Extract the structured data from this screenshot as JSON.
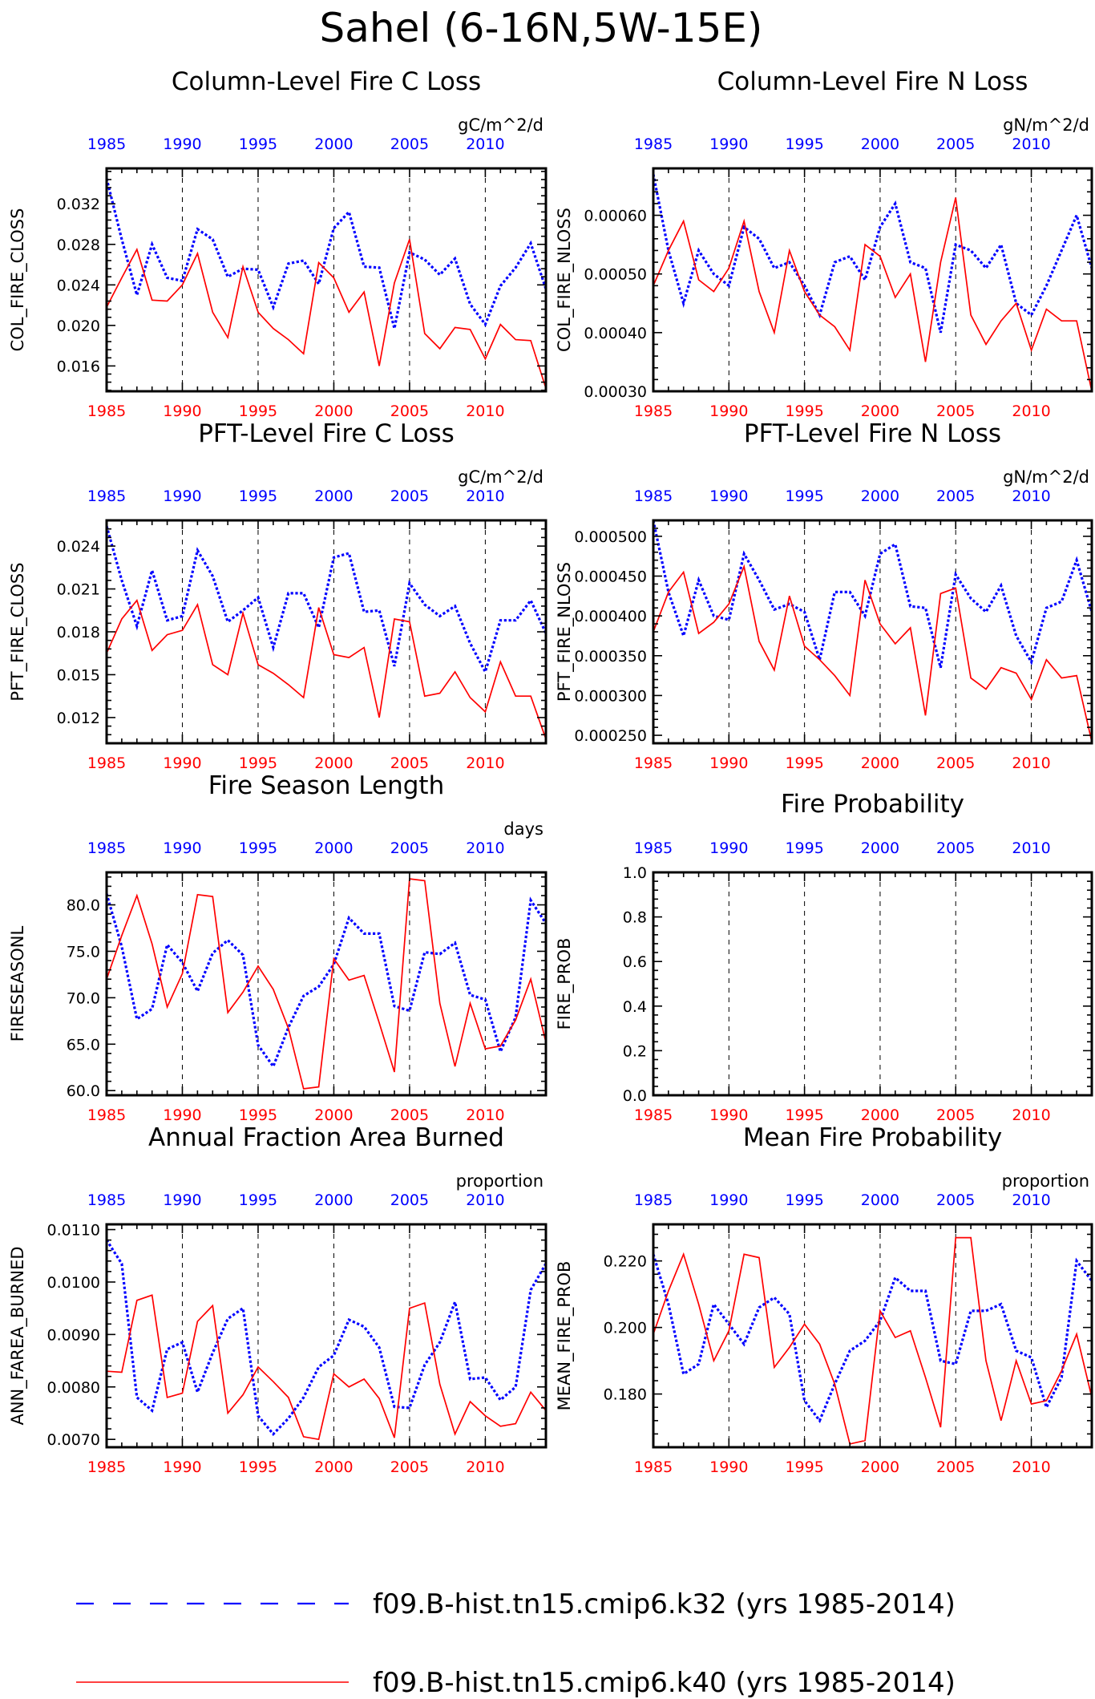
{
  "figure_title": "Sahel (6-16N,5W-15E)",
  "colors": {
    "k32": "#0000ff",
    "k40": "#ff0000",
    "axis": "#000000"
  },
  "legend": [
    {
      "label": "f09.B-hist.tn15.cmip6.k32 (yrs 1985-2014)",
      "color": "#0000ff",
      "style": "dashed"
    },
    {
      "label": "f09.B-hist.tn15.cmip6.k40 (yrs 1985-2014)",
      "color": "#ff0000",
      "style": "solid"
    }
  ],
  "chart_data": [
    {
      "type": "line",
      "title": "Column-Level Fire C Loss",
      "units": "gC/m^2/d",
      "ylabel": "COL_FIRE_CLOSS",
      "ylim": [
        0.0135,
        0.0355
      ],
      "yticks": [
        0.016,
        0.02,
        0.024,
        0.028,
        0.032
      ],
      "ytick_labels": [
        "0.016",
        "0.020",
        "0.024",
        "0.028",
        "0.032"
      ],
      "top_xtick_labels": [
        "1985",
        "1990",
        "1995",
        "2000",
        "2005",
        "2010"
      ],
      "bottom_xtick_labels": [
        "1985",
        "1990",
        "1995",
        "2000",
        "2005",
        "2010"
      ],
      "x": [
        1985,
        1986,
        1987,
        1988,
        1989,
        1990,
        1991,
        1992,
        1993,
        1994,
        1995,
        1996,
        1997,
        1998,
        1999,
        2000,
        2001,
        2002,
        2003,
        2004,
        2005,
        2006,
        2007,
        2008,
        2009,
        2010,
        2011,
        2012,
        2013,
        2014
      ],
      "series": [
        {
          "name": "f09.B-hist.tn15.cmip6.k32",
          "values": [
            0.0345,
            0.0285,
            0.023,
            0.028,
            0.0247,
            0.0244,
            0.0295,
            0.0285,
            0.0248,
            0.0256,
            0.0255,
            0.0218,
            0.0261,
            0.0264,
            0.0241,
            0.0296,
            0.0312,
            0.0258,
            0.0257,
            0.0197,
            0.0272,
            0.0265,
            0.025,
            0.0266,
            0.0221,
            0.0201,
            0.0239,
            0.0257,
            0.0281,
            0.0236
          ]
        },
        {
          "name": "f09.B-hist.tn15.cmip6.k40",
          "values": [
            0.0218,
            0.0247,
            0.0275,
            0.0225,
            0.0224,
            0.024,
            0.0271,
            0.0213,
            0.0188,
            0.0258,
            0.0213,
            0.0197,
            0.0186,
            0.0172,
            0.0262,
            0.0247,
            0.0213,
            0.0233,
            0.016,
            0.0242,
            0.0285,
            0.0192,
            0.0177,
            0.0198,
            0.0196,
            0.0167,
            0.0201,
            0.0186,
            0.0185,
            0.0138
          ]
        }
      ]
    },
    {
      "type": "line",
      "title": "Column-Level Fire N Loss",
      "units": "gN/m^2/d",
      "ylabel": "COL_FIRE_NLOSS",
      "ylim": [
        0.0003,
        0.00068
      ],
      "yticks": [
        0.0003,
        0.0004,
        0.0005,
        0.0006
      ],
      "ytick_labels": [
        "0.00030",
        "0.00040",
        "0.00050",
        "0.00060"
      ],
      "top_xtick_labels": [
        "1985",
        "1990",
        "1995",
        "2000",
        "2005",
        "2010"
      ],
      "bottom_xtick_labels": [
        "1985",
        "1990",
        "1995",
        "2000",
        "2005",
        "2010"
      ],
      "x": [
        1985,
        1986,
        1987,
        1988,
        1989,
        1990,
        1991,
        1992,
        1993,
        1994,
        1995,
        1996,
        1997,
        1998,
        1999,
        2000,
        2001,
        2002,
        2003,
        2004,
        2005,
        2006,
        2007,
        2008,
        2009,
        2010,
        2011,
        2012,
        2013,
        2014
      ],
      "series": [
        {
          "name": "f09.B-hist.tn15.cmip6.k32",
          "values": [
            0.00067,
            0.00054,
            0.00045,
            0.00054,
            0.0005,
            0.00048,
            0.00058,
            0.00056,
            0.00051,
            0.00052,
            0.00048,
            0.00043,
            0.00052,
            0.00053,
            0.00049,
            0.00058,
            0.00062,
            0.00052,
            0.00051,
            0.0004,
            0.00055,
            0.00054,
            0.00051,
            0.00055,
            0.00045,
            0.00043,
            0.00048,
            0.00054,
            0.0006,
            0.00051
          ]
        },
        {
          "name": "f09.B-hist.tn15.cmip6.k40",
          "values": [
            0.00048,
            0.00054,
            0.00059,
            0.00049,
            0.00047,
            0.00051,
            0.00059,
            0.00047,
            0.0004,
            0.00054,
            0.00047,
            0.00043,
            0.00041,
            0.00037,
            0.00055,
            0.00053,
            0.00046,
            0.0005,
            0.00035,
            0.00052,
            0.00063,
            0.00043,
            0.00038,
            0.00042,
            0.00045,
            0.00037,
            0.00044,
            0.00042,
            0.00042,
            0.0003
          ]
        }
      ]
    },
    {
      "type": "line",
      "title": "PFT-Level Fire C Loss",
      "units": "gC/m^2/d",
      "ylabel": "PFT_FIRE_CLOSS",
      "ylim": [
        0.0102,
        0.0258
      ],
      "yticks": [
        0.012,
        0.015,
        0.018,
        0.021,
        0.024
      ],
      "ytick_labels": [
        "0.012",
        "0.015",
        "0.018",
        "0.021",
        "0.024"
      ],
      "top_xtick_labels": [
        "1985",
        "1990",
        "1995",
        "2000",
        "2005",
        "2010"
      ],
      "bottom_xtick_labels": [
        "1985",
        "1990",
        "1995",
        "2000",
        "2005",
        "2010"
      ],
      "x": [
        1985,
        1986,
        1987,
        1988,
        1989,
        1990,
        1991,
        1992,
        1993,
        1994,
        1995,
        1996,
        1997,
        1998,
        1999,
        2000,
        2001,
        2002,
        2003,
        2004,
        2005,
        2006,
        2007,
        2008,
        2009,
        2010,
        2011,
        2012,
        2013,
        2014
      ],
      "series": [
        {
          "name": "f09.B-hist.tn15.cmip6.k32",
          "values": [
            0.0254,
            0.0216,
            0.0184,
            0.0223,
            0.0188,
            0.0191,
            0.0237,
            0.0219,
            0.0187,
            0.0195,
            0.0204,
            0.0169,
            0.0207,
            0.0207,
            0.0183,
            0.0232,
            0.0235,
            0.0194,
            0.0195,
            0.0156,
            0.0214,
            0.0199,
            0.0191,
            0.0198,
            0.0172,
            0.0152,
            0.0188,
            0.0188,
            0.0202,
            0.0179
          ]
        },
        {
          "name": "f09.B-hist.tn15.cmip6.k40",
          "values": [
            0.0165,
            0.0189,
            0.0202,
            0.0167,
            0.0178,
            0.0181,
            0.0199,
            0.0157,
            0.015,
            0.0193,
            0.0157,
            0.0151,
            0.0143,
            0.0134,
            0.0197,
            0.0164,
            0.0162,
            0.0169,
            0.012,
            0.0189,
            0.0187,
            0.0135,
            0.0137,
            0.0152,
            0.0134,
            0.0124,
            0.0159,
            0.0135,
            0.0135,
            0.0105
          ]
        }
      ]
    },
    {
      "type": "line",
      "title": "PFT-Level Fire N Loss",
      "units": "gN/m^2/d",
      "ylabel": "PFT_FIRE_NLOSS",
      "ylim": [
        0.00024,
        0.00052
      ],
      "yticks": [
        0.00025,
        0.0003,
        0.00035,
        0.0004,
        0.00045,
        0.0005
      ],
      "ytick_labels": [
        "0.000250",
        "0.000300",
        "0.000350",
        "0.000400",
        "0.000450",
        "0.000500"
      ],
      "top_xtick_labels": [
        "1985",
        "1990",
        "1995",
        "2000",
        "2005",
        "2010"
      ],
      "bottom_xtick_labels": [
        "1985",
        "1990",
        "1995",
        "2000",
        "2005",
        "2010"
      ],
      "x": [
        1985,
        1986,
        1987,
        1988,
        1989,
        1990,
        1991,
        1992,
        1993,
        1994,
        1995,
        1996,
        1997,
        1998,
        1999,
        2000,
        2001,
        2002,
        2003,
        2004,
        2005,
        2006,
        2007,
        2008,
        2009,
        2010,
        2011,
        2012,
        2013,
        2014
      ],
      "series": [
        {
          "name": "f09.B-hist.tn15.cmip6.k32",
          "values": [
            0.00052,
            0.00043,
            0.000375,
            0.000445,
            0.0004,
            0.000395,
            0.000478,
            0.000445,
            0.000408,
            0.000415,
            0.000405,
            0.000345,
            0.00043,
            0.00043,
            0.0004,
            0.000478,
            0.00049,
            0.000412,
            0.00041,
            0.000335,
            0.000452,
            0.000422,
            0.000405,
            0.000438,
            0.000375,
            0.000342,
            0.00041,
            0.000418,
            0.00047,
            0.000405
          ]
        },
        {
          "name": "f09.B-hist.tn15.cmip6.k40",
          "values": [
            0.00038,
            0.00043,
            0.000455,
            0.000378,
            0.000392,
            0.000415,
            0.000462,
            0.000368,
            0.000332,
            0.000425,
            0.000362,
            0.000345,
            0.000325,
            0.0003,
            0.000445,
            0.00039,
            0.000365,
            0.000385,
            0.000275,
            0.000428,
            0.000435,
            0.000322,
            0.000308,
            0.000335,
            0.000328,
            0.000295,
            0.000345,
            0.000322,
            0.000325,
            0.000242
          ]
        }
      ]
    },
    {
      "type": "line",
      "title": "Fire Season Length",
      "units": "days",
      "ylabel": "FIRESEASONL",
      "ylim": [
        59.5,
        83.5
      ],
      "yticks": [
        60,
        65,
        70,
        75,
        80
      ],
      "ytick_labels": [
        "60.0",
        "65.0",
        "70.0",
        "75.0",
        "80.0"
      ],
      "top_xtick_labels": [
        "1985",
        "1990",
        "1995",
        "2000",
        "2005",
        "2010"
      ],
      "bottom_xtick_labels": [
        "1985",
        "1990",
        "1995",
        "2000",
        "2005",
        "2010"
      ],
      "x": [
        1985,
        1986,
        1987,
        1988,
        1989,
        1990,
        1991,
        1992,
        1993,
        1994,
        1995,
        1996,
        1997,
        1998,
        1999,
        2000,
        2001,
        2002,
        2003,
        2004,
        2005,
        2006,
        2007,
        2008,
        2009,
        2010,
        2011,
        2012,
        2013,
        2014
      ],
      "series": [
        {
          "name": "f09.B-hist.tn15.cmip6.k32",
          "values": [
            81.2,
            75.5,
            67.7,
            68.8,
            75.7,
            73.8,
            70.7,
            74.8,
            76.2,
            74.6,
            64.9,
            62.6,
            66.8,
            70.2,
            71.2,
            73.6,
            78.6,
            76.9,
            76.9,
            69.1,
            68.6,
            74.9,
            74.7,
            75.9,
            70.3,
            69.8,
            64.2,
            67.9,
            80.5,
            78.0
          ]
        },
        {
          "name": "f09.B-hist.tn15.cmip6.k40",
          "values": [
            72.0,
            76.7,
            81.0,
            75.8,
            69.0,
            72.6,
            81.1,
            80.9,
            68.4,
            70.6,
            73.4,
            70.9,
            66.7,
            60.2,
            60.4,
            74.2,
            71.9,
            72.4,
            67.3,
            62.0,
            82.8,
            82.6,
            69.4,
            62.6,
            69.4,
            64.5,
            64.8,
            67.6,
            72.0,
            65.2
          ]
        }
      ]
    },
    {
      "type": "line",
      "title": "Fire Probability",
      "units": "",
      "ylabel": "FIRE_PROB",
      "ylim": [
        0,
        1
      ],
      "yticks": [
        0,
        0.2,
        0.4,
        0.6,
        0.8,
        1.0
      ],
      "ytick_labels": [
        "0.0",
        "0.2",
        "0.4",
        "0.6",
        "0.8",
        "1.0"
      ],
      "top_xtick_labels": [
        "1985",
        "1990",
        "1995",
        "2000",
        "2005",
        "2010"
      ],
      "bottom_xtick_labels": [
        "1985",
        "1990",
        "1995",
        "2000",
        "2005",
        "2010"
      ],
      "x": [],
      "series": []
    },
    {
      "type": "line",
      "title": "Annual Fraction Area Burned",
      "units": "proportion",
      "ylabel": "ANN_FAREA_BURNED",
      "ylim": [
        0.00685,
        0.0111
      ],
      "yticks": [
        0.007,
        0.008,
        0.009,
        0.01,
        0.011
      ],
      "ytick_labels": [
        "0.0070",
        "0.0080",
        "0.0090",
        "0.0100",
        "0.0110"
      ],
      "top_xtick_labels": [
        "1985",
        "1990",
        "1995",
        "2000",
        "2005",
        "2010"
      ],
      "bottom_xtick_labels": [
        "1985",
        "1990",
        "1995",
        "2000",
        "2005",
        "2010"
      ],
      "x": [
        1985,
        1986,
        1987,
        1988,
        1989,
        1990,
        1991,
        1992,
        1993,
        1994,
        1995,
        1996,
        1997,
        1998,
        1999,
        2000,
        2001,
        2002,
        2003,
        2004,
        2005,
        2006,
        2007,
        2008,
        2009,
        2010,
        2011,
        2012,
        2013,
        2014
      ],
      "series": [
        {
          "name": "f09.B-hist.tn15.cmip6.k32",
          "values": [
            0.0108,
            0.01035,
            0.0078,
            0.00755,
            0.00872,
            0.00885,
            0.0079,
            0.00865,
            0.0093,
            0.0095,
            0.00745,
            0.0071,
            0.0074,
            0.0078,
            0.00838,
            0.0086,
            0.00928,
            0.00915,
            0.00875,
            0.00762,
            0.0076,
            0.00842,
            0.00885,
            0.00962,
            0.00815,
            0.00818,
            0.00775,
            0.008,
            0.00985,
            0.01035
          ]
        },
        {
          "name": "f09.B-hist.tn15.cmip6.k40",
          "values": [
            0.0083,
            0.00828,
            0.00965,
            0.00975,
            0.0078,
            0.00788,
            0.00925,
            0.00955,
            0.0075,
            0.00785,
            0.00838,
            0.0081,
            0.0078,
            0.00705,
            0.007,
            0.00825,
            0.008,
            0.00815,
            0.00778,
            0.00703,
            0.0095,
            0.0096,
            0.00805,
            0.0071,
            0.00772,
            0.00745,
            0.00725,
            0.0073,
            0.0079,
            0.00755
          ]
        }
      ]
    },
    {
      "type": "line",
      "title": "Mean Fire Probability",
      "units": "proportion",
      "ylabel": "MEAN_FIRE_PROB",
      "ylim": [
        0.164,
        0.231
      ],
      "yticks": [
        0.18,
        0.2,
        0.22
      ],
      "ytick_labels": [
        "0.180",
        "0.200",
        "0.220"
      ],
      "top_xtick_labels": [
        "1985",
        "1990",
        "1995",
        "2000",
        "2005",
        "2010"
      ],
      "bottom_xtick_labels": [
        "1985",
        "1990",
        "1995",
        "2000",
        "2005",
        "2010"
      ],
      "x": [
        1985,
        1986,
        1987,
        1988,
        1989,
        1990,
        1991,
        1992,
        1993,
        1994,
        1995,
        1996,
        1997,
        1998,
        1999,
        2000,
        2001,
        2002,
        2003,
        2004,
        2005,
        2006,
        2007,
        2008,
        2009,
        2010,
        2011,
        2012,
        2013,
        2014
      ],
      "series": [
        {
          "name": "f09.B-hist.tn15.cmip6.k32",
          "values": [
            0.222,
            0.207,
            0.186,
            0.189,
            0.207,
            0.201,
            0.195,
            0.206,
            0.209,
            0.204,
            0.178,
            0.172,
            0.183,
            0.193,
            0.196,
            0.202,
            0.215,
            0.211,
            0.211,
            0.19,
            0.189,
            0.205,
            0.205,
            0.207,
            0.193,
            0.191,
            0.176,
            0.185,
            0.22,
            0.214
          ]
        },
        {
          "name": "f09.B-hist.tn15.cmip6.k40",
          "values": [
            0.198,
            0.211,
            0.222,
            0.207,
            0.19,
            0.199,
            0.222,
            0.221,
            0.188,
            0.194,
            0.201,
            0.195,
            0.183,
            0.165,
            0.166,
            0.205,
            0.197,
            0.199,
            0.185,
            0.17,
            0.227,
            0.227,
            0.19,
            0.172,
            0.19,
            0.177,
            0.178,
            0.187,
            0.198,
            0.179
          ]
        }
      ]
    }
  ]
}
